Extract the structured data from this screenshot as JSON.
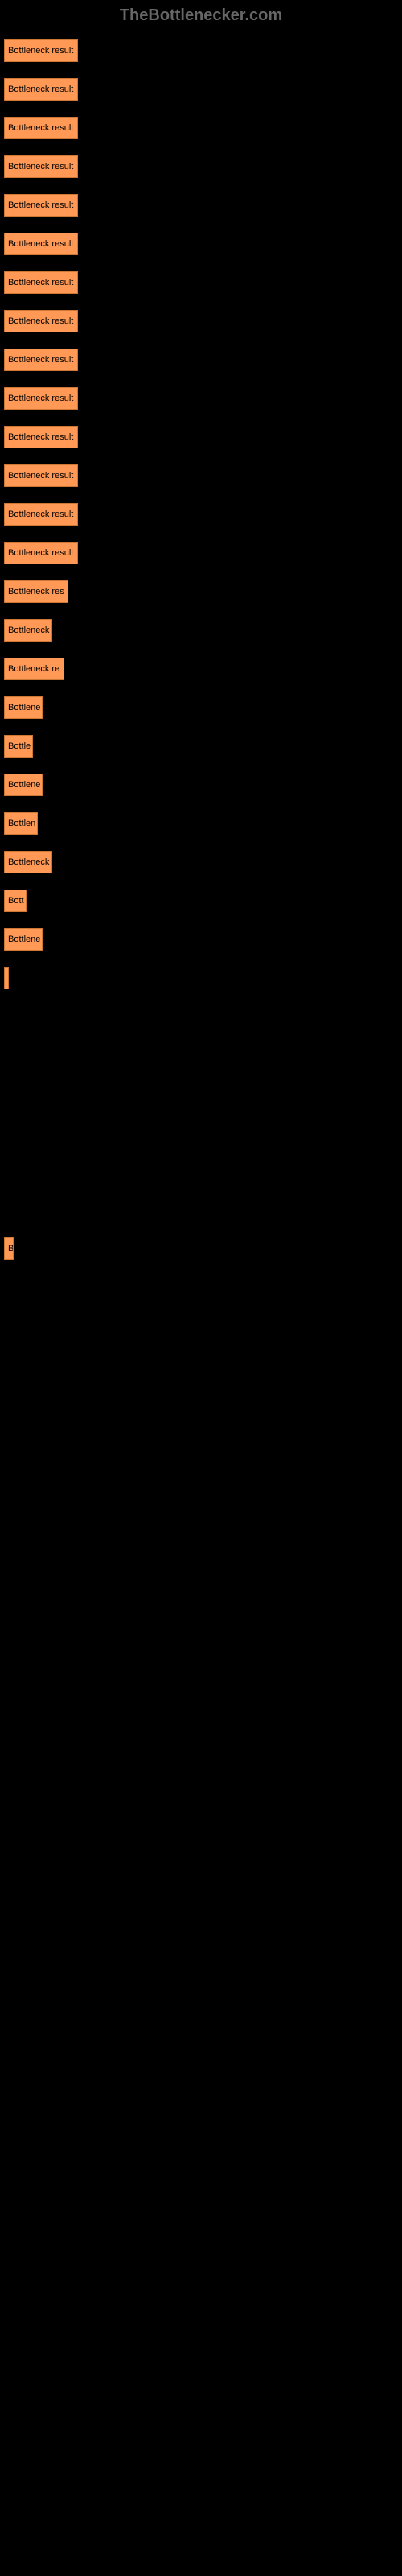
{
  "header": {
    "title": "TheBottlenecker.com"
  },
  "chart": {
    "type": "bar",
    "bar_color": "#ff9955",
    "bar_border_color": "#cc7733",
    "background_color": "#000000",
    "text_color": "#000000",
    "header_color": "#666666",
    "bars": [
      {
        "label": "Bottleneck result",
        "width": 92
      },
      {
        "label": "Bottleneck result",
        "width": 92
      },
      {
        "label": "Bottleneck result",
        "width": 92
      },
      {
        "label": "Bottleneck result",
        "width": 92
      },
      {
        "label": "Bottleneck result",
        "width": 92
      },
      {
        "label": "Bottleneck result",
        "width": 92
      },
      {
        "label": "Bottleneck result",
        "width": 92
      },
      {
        "label": "Bottleneck result",
        "width": 92
      },
      {
        "label": "Bottleneck result",
        "width": 92
      },
      {
        "label": "Bottleneck result",
        "width": 92
      },
      {
        "label": "Bottleneck result",
        "width": 92
      },
      {
        "label": "Bottleneck result",
        "width": 92
      },
      {
        "label": "Bottleneck result",
        "width": 92
      },
      {
        "label": "Bottleneck result",
        "width": 92
      },
      {
        "label": "Bottleneck res",
        "width": 80
      },
      {
        "label": "Bottleneck",
        "width": 60
      },
      {
        "label": "Bottleneck re",
        "width": 75
      },
      {
        "label": "Bottlene",
        "width": 48
      },
      {
        "label": "Bottle",
        "width": 36
      },
      {
        "label": "Bottlene",
        "width": 48
      },
      {
        "label": "Bottlen",
        "width": 42
      },
      {
        "label": "Bottleneck",
        "width": 60
      },
      {
        "label": "Bott",
        "width": 28
      },
      {
        "label": "Bottlene",
        "width": 48
      },
      {
        "label": "",
        "width": 6
      },
      {
        "label": "",
        "width": 0
      },
      {
        "label": "",
        "width": 0
      },
      {
        "label": "",
        "width": 0
      },
      {
        "label": "",
        "width": 0
      },
      {
        "label": "",
        "width": 0
      },
      {
        "label": "",
        "width": 0
      },
      {
        "label": "B",
        "width": 12
      }
    ]
  }
}
